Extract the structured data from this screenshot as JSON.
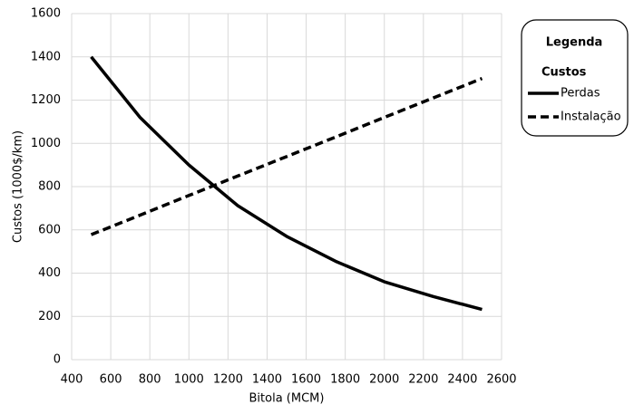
{
  "chart_data": {
    "type": "line",
    "xlabel": "Bitola (MCM)",
    "ylabel": "Custos (1000$/km)",
    "legend_title": "Legenda",
    "legend_subtitle": "Custos",
    "legend_position": "right",
    "x": [
      500,
      750,
      1000,
      1250,
      1500,
      1750,
      2000,
      2250,
      2500
    ],
    "series": [
      {
        "name": "Perdas",
        "color": "#000000",
        "linestyle": "solid",
        "values": [
          1400,
          1120,
          900,
          712,
          570,
          455,
          360,
          292,
          232
        ]
      },
      {
        "name": "Instalação",
        "color": "#000000",
        "linestyle": "dashed",
        "values": [
          578,
          668,
          759,
          849,
          939,
          1029,
          1120,
          1210,
          1300
        ]
      }
    ],
    "xlim": [
      400,
      2600
    ],
    "xticks": [
      400,
      600,
      800,
      1000,
      1200,
      1400,
      1600,
      1800,
      2000,
      2200,
      2400,
      2600
    ],
    "ylim": [
      0,
      1600
    ],
    "yticks": [
      0,
      200,
      400,
      600,
      800,
      1000,
      1200,
      1400,
      1600
    ],
    "grid": true
  }
}
